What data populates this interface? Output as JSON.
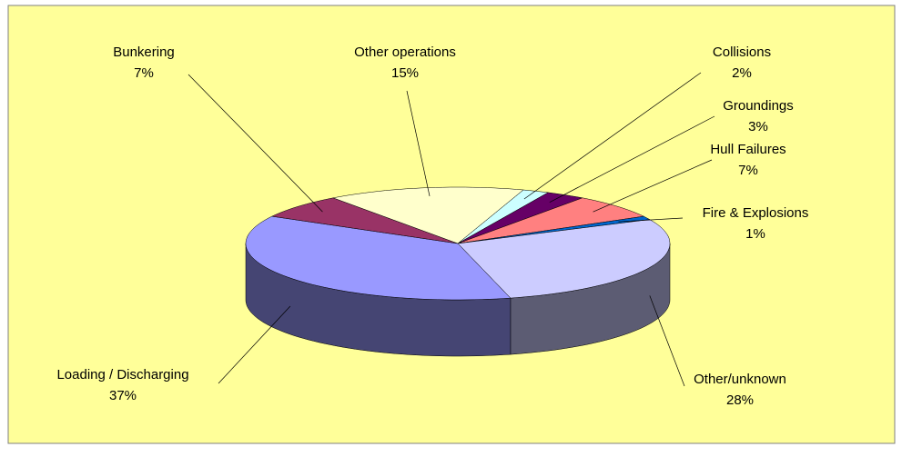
{
  "chart_data": {
    "type": "pie3d",
    "categories": [
      "Collisions",
      "Groundings",
      "Hull Failures",
      "Fire & Explosions",
      "Other/unknown",
      "Loading / Discharging",
      "Bunkering",
      "Other operations"
    ],
    "values": [
      2,
      3,
      7,
      1,
      28,
      37,
      7,
      15
    ],
    "value_labels": [
      "2%",
      "3%",
      "7%",
      "1%",
      "28%",
      "37%",
      "7%",
      "15%"
    ],
    "colors": [
      "#ccffff",
      "#660066",
      "#ff8080",
      "#0066cc",
      "#ccccff",
      "#9999ff",
      "#993366",
      "#ffffcc"
    ]
  }
}
